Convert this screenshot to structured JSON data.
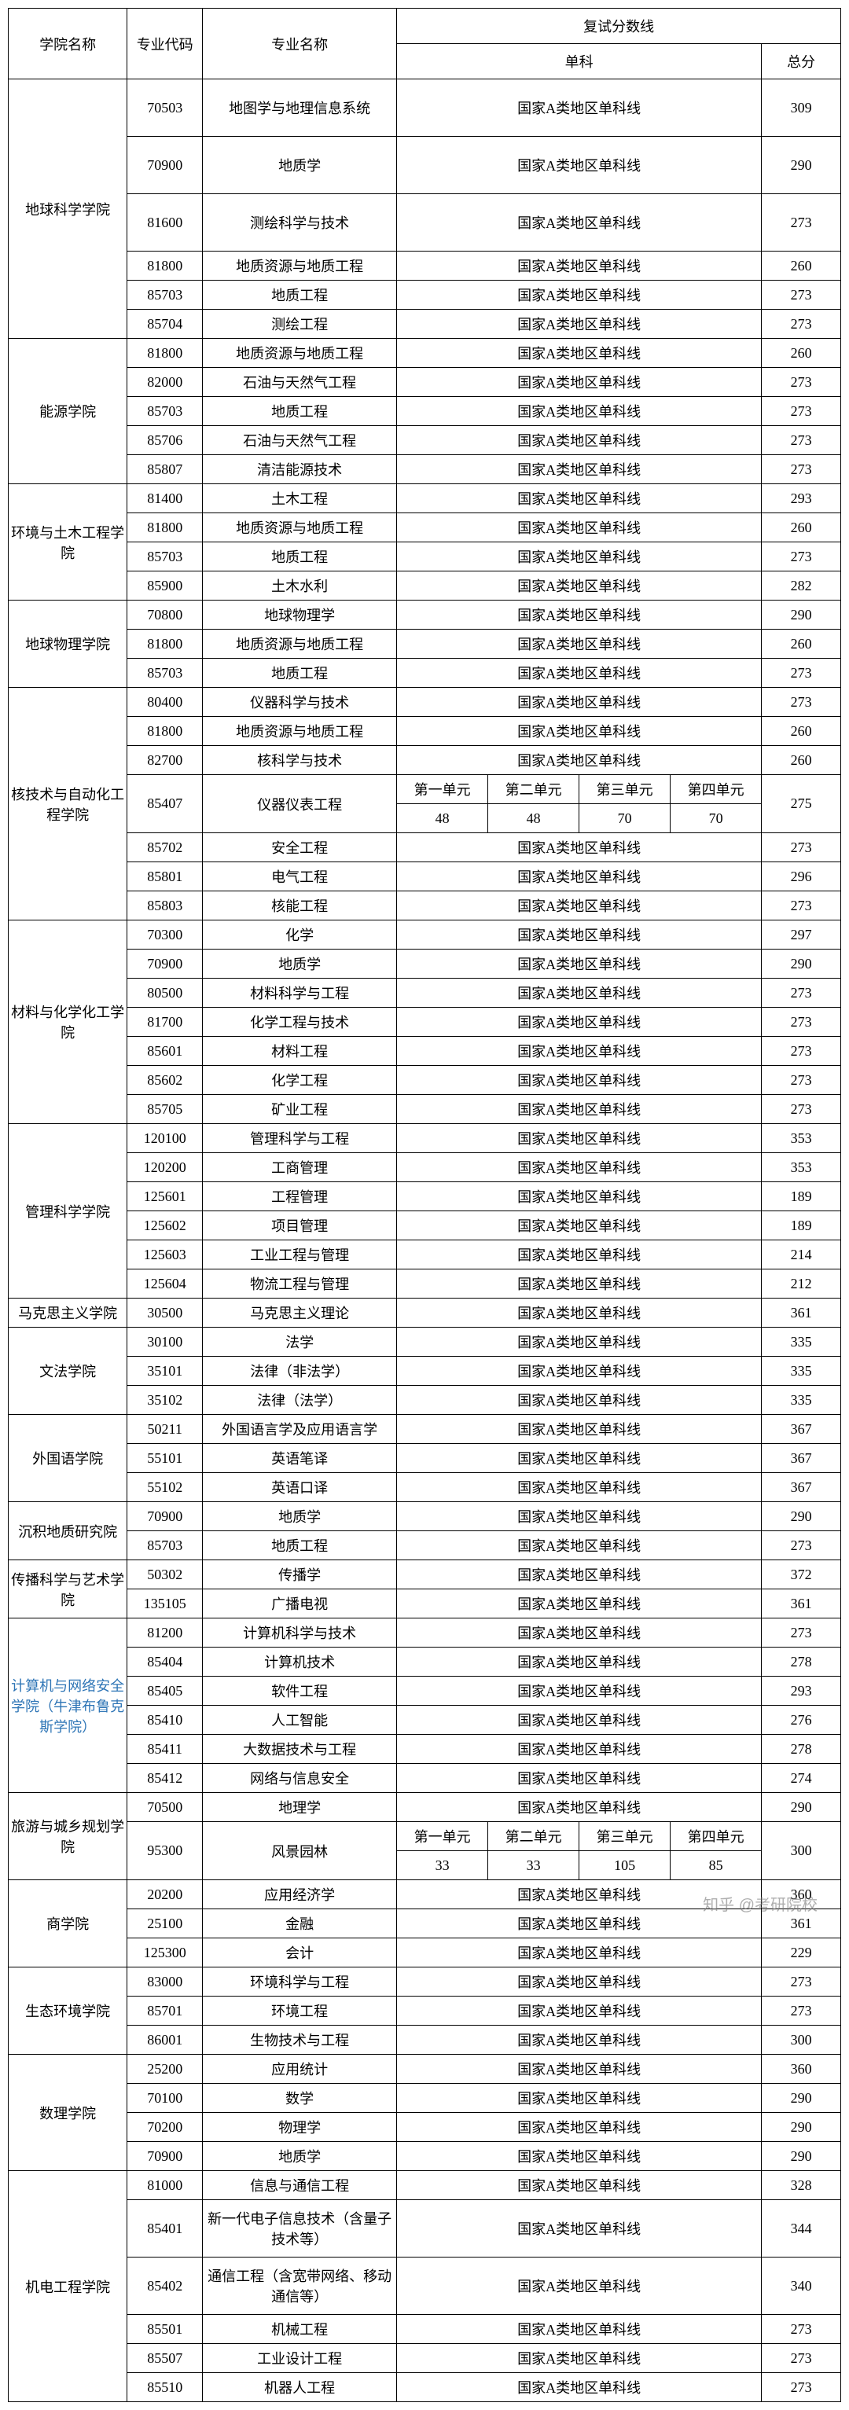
{
  "header": {
    "school": "学院名称",
    "code": "专业代码",
    "major": "专业名称",
    "scoreLine": "复试分数线",
    "single": "单科",
    "total": "总分"
  },
  "subHeader": {
    "u1": "第一单元",
    "u2": "第二单元",
    "u3": "第三单元",
    "u4": "第四单元"
  },
  "nationalLine": "国家A类地区单科线",
  "watermark": "知乎 @考研院校",
  "groups": [
    {
      "school": "地球科学学院",
      "rows": [
        {
          "code": "70503",
          "major": "地图学与地理信息系统",
          "type": "nat",
          "total": "309",
          "tall": true
        },
        {
          "code": "70900",
          "major": "地质学",
          "type": "nat",
          "total": "290",
          "tall": true
        },
        {
          "code": "81600",
          "major": "测绘科学与技术",
          "type": "nat",
          "total": "273",
          "tall": true
        },
        {
          "code": "81800",
          "major": "地质资源与地质工程",
          "type": "nat",
          "total": "260"
        },
        {
          "code": "85703",
          "major": "地质工程",
          "type": "nat",
          "total": "273"
        },
        {
          "code": "85704",
          "major": "测绘工程",
          "type": "nat",
          "total": "273"
        }
      ]
    },
    {
      "school": "能源学院",
      "rows": [
        {
          "code": "81800",
          "major": "地质资源与地质工程",
          "type": "nat",
          "total": "260"
        },
        {
          "code": "82000",
          "major": "石油与天然气工程",
          "type": "nat",
          "total": "273"
        },
        {
          "code": "85703",
          "major": "地质工程",
          "type": "nat",
          "total": "273"
        },
        {
          "code": "85706",
          "major": "石油与天然气工程",
          "type": "nat",
          "total": "273"
        },
        {
          "code": "85807",
          "major": "清洁能源技术",
          "type": "nat",
          "total": "273"
        }
      ]
    },
    {
      "school": "环境与土木工程学院",
      "rows": [
        {
          "code": "81400",
          "major": "土木工程",
          "type": "nat",
          "total": "293"
        },
        {
          "code": "81800",
          "major": "地质资源与地质工程",
          "type": "nat",
          "total": "260"
        },
        {
          "code": "85703",
          "major": "地质工程",
          "type": "nat",
          "total": "273"
        },
        {
          "code": "85900",
          "major": "土木水利",
          "type": "nat",
          "total": "282"
        }
      ]
    },
    {
      "school": "地球物理学院",
      "rows": [
        {
          "code": "70800",
          "major": "地球物理学",
          "type": "nat",
          "total": "290"
        },
        {
          "code": "81800",
          "major": "地质资源与地质工程",
          "type": "nat",
          "total": "260"
        },
        {
          "code": "85703",
          "major": "地质工程",
          "type": "nat",
          "total": "273"
        }
      ]
    },
    {
      "school": "核技术与自动化工程学院",
      "rows": [
        {
          "code": "80400",
          "major": "仪器科学与技术",
          "type": "nat",
          "total": "273"
        },
        {
          "code": "81800",
          "major": "地质资源与地质工程",
          "type": "nat",
          "total": "260"
        },
        {
          "code": "82700",
          "major": "核科学与技术",
          "type": "nat",
          "total": "260"
        },
        {
          "code": "85407",
          "major": "仪器仪表工程",
          "type": "units",
          "units": [
            "48",
            "48",
            "70",
            "70"
          ],
          "total": "275"
        },
        {
          "code": "85702",
          "major": "安全工程",
          "type": "nat",
          "total": "273"
        },
        {
          "code": "85801",
          "major": "电气工程",
          "type": "nat",
          "total": "296"
        },
        {
          "code": "85803",
          "major": "核能工程",
          "type": "nat",
          "total": "273"
        }
      ]
    },
    {
      "school": "材料与化学化工学院",
      "rows": [
        {
          "code": "70300",
          "major": "化学",
          "type": "nat",
          "total": "297"
        },
        {
          "code": "70900",
          "major": "地质学",
          "type": "nat",
          "total": "290"
        },
        {
          "code": "80500",
          "major": "材料科学与工程",
          "type": "nat",
          "total": "273"
        },
        {
          "code": "81700",
          "major": "化学工程与技术",
          "type": "nat",
          "total": "273"
        },
        {
          "code": "85601",
          "major": "材料工程",
          "type": "nat",
          "total": "273"
        },
        {
          "code": "85602",
          "major": "化学工程",
          "type": "nat",
          "total": "273"
        },
        {
          "code": "85705",
          "major": "矿业工程",
          "type": "nat",
          "total": "273"
        }
      ]
    },
    {
      "school": "管理科学学院",
      "rows": [
        {
          "code": "120100",
          "major": "管理科学与工程",
          "type": "nat",
          "total": "353"
        },
        {
          "code": "120200",
          "major": "工商管理",
          "type": "nat",
          "total": "353"
        },
        {
          "code": "125601",
          "major": "工程管理",
          "type": "nat",
          "total": "189"
        },
        {
          "code": "125602",
          "major": "项目管理",
          "type": "nat",
          "total": "189"
        },
        {
          "code": "125603",
          "major": "工业工程与管理",
          "type": "nat",
          "total": "214"
        },
        {
          "code": "125604",
          "major": "物流工程与管理",
          "type": "nat",
          "total": "212"
        }
      ]
    },
    {
      "school": "马克思主义学院",
      "rows": [
        {
          "code": "30500",
          "major": "马克思主义理论",
          "type": "nat",
          "total": "361"
        }
      ]
    },
    {
      "school": "文法学院",
      "rows": [
        {
          "code": "30100",
          "major": "法学",
          "type": "nat",
          "total": "335"
        },
        {
          "code": "35101",
          "major": "法律（非法学）",
          "type": "nat",
          "total": "335"
        },
        {
          "code": "35102",
          "major": "法律（法学）",
          "type": "nat",
          "total": "335"
        }
      ]
    },
    {
      "school": "外国语学院",
      "rows": [
        {
          "code": "50211",
          "major": "外国语言学及应用语言学",
          "type": "nat",
          "total": "367"
        },
        {
          "code": "55101",
          "major": "英语笔译",
          "type": "nat",
          "total": "367"
        },
        {
          "code": "55102",
          "major": "英语口译",
          "type": "nat",
          "total": "367"
        }
      ]
    },
    {
      "school": "沉积地质研究院",
      "rows": [
        {
          "code": "70900",
          "major": "地质学",
          "type": "nat",
          "total": "290"
        },
        {
          "code": "85703",
          "major": "地质工程",
          "type": "nat",
          "total": "273"
        }
      ]
    },
    {
      "school": "传播科学与艺术学院",
      "rows": [
        {
          "code": "50302",
          "major": "传播学",
          "type": "nat",
          "total": "372"
        },
        {
          "code": "135105",
          "major": "广播电视",
          "type": "nat",
          "total": "361"
        }
      ]
    },
    {
      "school": "计算机与网络安全学院（牛津布鲁克斯学院）",
      "highlight": true,
      "rows": [
        {
          "code": "81200",
          "major": "计算机科学与技术",
          "type": "nat",
          "total": "273"
        },
        {
          "code": "85404",
          "major": "计算机技术",
          "type": "nat",
          "total": "278"
        },
        {
          "code": "85405",
          "major": "软件工程",
          "type": "nat",
          "total": "293"
        },
        {
          "code": "85410",
          "major": "人工智能",
          "type": "nat",
          "total": "276"
        },
        {
          "code": "85411",
          "major": "大数据技术与工程",
          "type": "nat",
          "total": "278"
        },
        {
          "code": "85412",
          "major": "网络与信息安全",
          "type": "nat",
          "total": "274"
        }
      ]
    },
    {
      "school": "旅游与城乡规划学院",
      "rows": [
        {
          "code": "70500",
          "major": "地理学",
          "type": "nat",
          "total": "290"
        },
        {
          "code": "95300",
          "major": "风景园林",
          "type": "units",
          "units": [
            "33",
            "33",
            "105",
            "85"
          ],
          "total": "300"
        }
      ]
    },
    {
      "school": "商学院",
      "rows": [
        {
          "code": "20200",
          "major": "应用经济学",
          "type": "nat",
          "total": "360"
        },
        {
          "code": "25100",
          "major": "金融",
          "type": "nat",
          "total": "361"
        },
        {
          "code": "125300",
          "major": "会计",
          "type": "nat",
          "total": "229"
        }
      ]
    },
    {
      "school": "生态环境学院",
      "rows": [
        {
          "code": "83000",
          "major": "环境科学与工程",
          "type": "nat",
          "total": "273"
        },
        {
          "code": "85701",
          "major": "环境工程",
          "type": "nat",
          "total": "273"
        },
        {
          "code": "86001",
          "major": "生物技术与工程",
          "type": "nat",
          "total": "300"
        }
      ]
    },
    {
      "school": "数理学院",
      "rows": [
        {
          "code": "25200",
          "major": "应用统计",
          "type": "nat",
          "total": "360"
        },
        {
          "code": "70100",
          "major": "数学",
          "type": "nat",
          "total": "290"
        },
        {
          "code": "70200",
          "major": "物理学",
          "type": "nat",
          "total": "290"
        },
        {
          "code": "70900",
          "major": "地质学",
          "type": "nat",
          "total": "290"
        }
      ]
    },
    {
      "school": "机电工程学院",
      "rows": [
        {
          "code": "81000",
          "major": "信息与通信工程",
          "type": "nat",
          "total": "328"
        },
        {
          "code": "85401",
          "major": "新一代电子信息技术（含量子技术等）",
          "type": "nat",
          "total": "344",
          "tall": true
        },
        {
          "code": "85402",
          "major": "通信工程（含宽带网络、移动通信等）",
          "type": "nat",
          "total": "340",
          "tall": true
        },
        {
          "code": "85501",
          "major": "机械工程",
          "type": "nat",
          "total": "273"
        },
        {
          "code": "85507",
          "major": "工业设计工程",
          "type": "nat",
          "total": "273"
        },
        {
          "code": "85510",
          "major": "机器人工程",
          "type": "nat",
          "total": "273"
        }
      ]
    }
  ]
}
